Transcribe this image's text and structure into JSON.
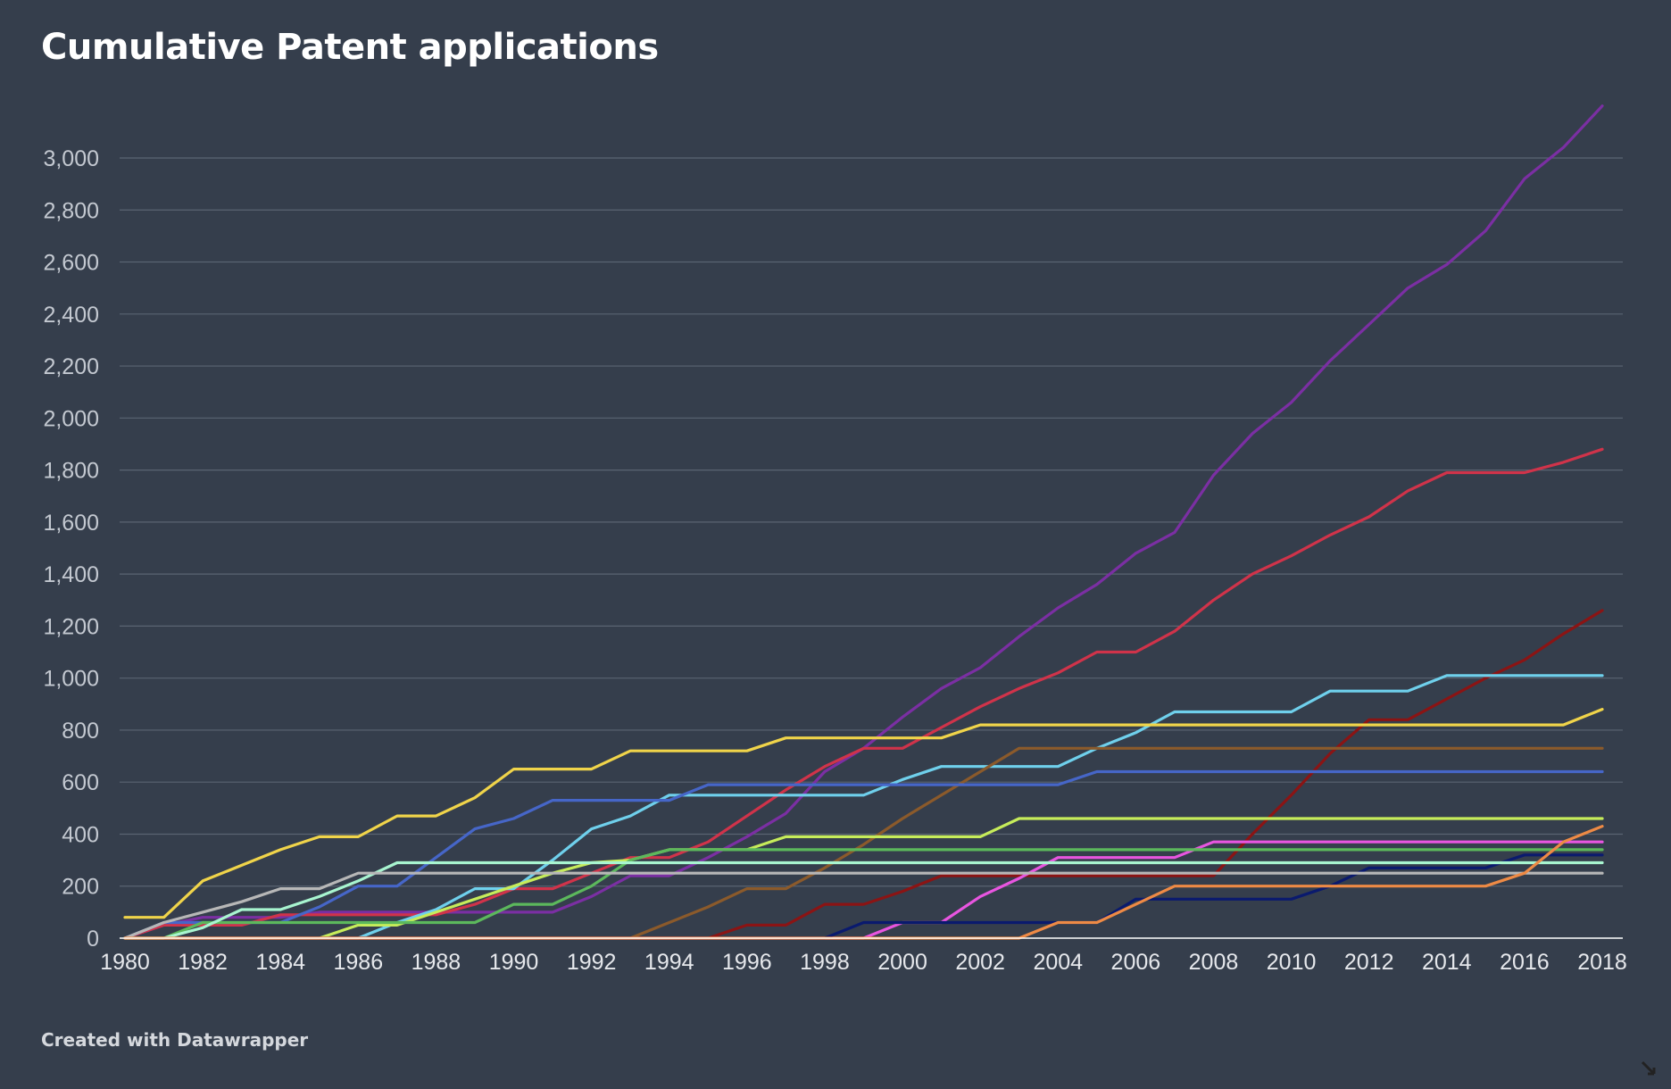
{
  "title": "Cumulative Patent applications",
  "footer": "Created with Datawrapper",
  "chart_data": {
    "type": "line",
    "title": "Cumulative Patent applications",
    "xlabel": "",
    "ylabel": "",
    "x": [
      1980,
      1981,
      1982,
      1983,
      1984,
      1985,
      1986,
      1987,
      1988,
      1989,
      1990,
      1991,
      1992,
      1993,
      1994,
      1995,
      1996,
      1997,
      1998,
      1999,
      2000,
      2001,
      2002,
      2003,
      2004,
      2005,
      2006,
      2007,
      2008,
      2009,
      2010,
      2011,
      2012,
      2013,
      2014,
      2015,
      2016,
      2017,
      2018
    ],
    "xlim": [
      1980,
      2018
    ],
    "ylim": [
      0,
      3200
    ],
    "yticks": [
      0,
      200,
      400,
      600,
      800,
      1000,
      1200,
      1400,
      1600,
      1800,
      2000,
      2200,
      2400,
      2600,
      2800,
      3000
    ],
    "ytick_labels": [
      "0",
      "200",
      "400",
      "600",
      "800",
      "1,000",
      "1,200",
      "1,400",
      "1,600",
      "1,800",
      "2,000",
      "2,200",
      "2,400",
      "2,600",
      "2,800",
      "3,000"
    ],
    "xticks": [
      1980,
      1982,
      1984,
      1986,
      1988,
      1990,
      1992,
      1994,
      1996,
      1998,
      2000,
      2002,
      2004,
      2006,
      2008,
      2010,
      2012,
      2014,
      2016,
      2018
    ],
    "xtick_labels": [
      "1980",
      "1982",
      "1984",
      "1986",
      "1988",
      "1990",
      "1992",
      "1994",
      "1996",
      "1998",
      "2000",
      "2002",
      "2004",
      "2006",
      "2008",
      "2010",
      "2012",
      "2014",
      "2016",
      "2018"
    ],
    "grid": true,
    "legend": "none",
    "series": [
      {
        "color": "#7b2fa3",
        "values": [
          0,
          50,
          80,
          80,
          80,
          100,
          100,
          100,
          100,
          100,
          100,
          100,
          160,
          240,
          240,
          310,
          390,
          480,
          640,
          730,
          850,
          960,
          1040,
          1160,
          1270,
          1360,
          1480,
          1560,
          1780,
          1940,
          2060,
          2220,
          2360,
          2500,
          2590,
          2720,
          2920,
          3040,
          3200
        ]
      },
      {
        "color": "#d0334a",
        "values": [
          0,
          50,
          50,
          50,
          90,
          90,
          90,
          90,
          90,
          130,
          190,
          190,
          250,
          310,
          310,
          370,
          470,
          570,
          660,
          730,
          730,
          810,
          890,
          960,
          1020,
          1100,
          1100,
          1180,
          1300,
          1400,
          1470,
          1550,
          1620,
          1720,
          1790,
          1790,
          1790,
          1830,
          1880
        ]
      },
      {
        "color": "#8b1414",
        "values": [
          0,
          0,
          0,
          0,
          0,
          0,
          0,
          0,
          0,
          0,
          0,
          0,
          0,
          0,
          0,
          0,
          50,
          50,
          130,
          130,
          180,
          240,
          240,
          240,
          240,
          240,
          240,
          240,
          240,
          400,
          550,
          710,
          840,
          840,
          920,
          1000,
          1070,
          1170,
          1260
        ]
      },
      {
        "color": "#6fd0ec",
        "values": [
          0,
          0,
          0,
          0,
          0,
          0,
          0,
          60,
          110,
          190,
          190,
          300,
          420,
          470,
          550,
          550,
          550,
          550,
          550,
          550,
          610,
          660,
          660,
          660,
          660,
          730,
          790,
          870,
          870,
          870,
          870,
          950,
          950,
          950,
          1010,
          1010,
          1010,
          1010,
          1010
        ]
      },
      {
        "color": "#f0d44a",
        "values": [
          80,
          80,
          220,
          280,
          340,
          390,
          390,
          470,
          470,
          540,
          650,
          650,
          650,
          720,
          720,
          720,
          720,
          770,
          770,
          770,
          770,
          770,
          820,
          820,
          820,
          820,
          820,
          820,
          820,
          820,
          820,
          820,
          820,
          820,
          820,
          820,
          820,
          820,
          880
        ]
      },
      {
        "color": "#8b5a2b",
        "values": [
          0,
          0,
          0,
          0,
          0,
          0,
          0,
          0,
          0,
          0,
          0,
          0,
          0,
          0,
          60,
          120,
          190,
          190,
          270,
          360,
          460,
          550,
          640,
          730,
          730,
          730,
          730,
          730,
          730,
          730,
          730,
          730,
          730,
          730,
          730,
          730,
          730,
          730,
          730
        ]
      },
      {
        "color": "#4666c8",
        "values": [
          0,
          60,
          60,
          60,
          60,
          120,
          200,
          200,
          310,
          420,
          460,
          530,
          530,
          530,
          530,
          590,
          590,
          590,
          590,
          590,
          590,
          590,
          590,
          590,
          590,
          640,
          640,
          640,
          640,
          640,
          640,
          640,
          640,
          640,
          640,
          640,
          640,
          640,
          640
        ]
      },
      {
        "color": "#c6ec5a",
        "values": [
          0,
          0,
          0,
          0,
          0,
          0,
          50,
          50,
          100,
          150,
          200,
          250,
          290,
          300,
          340,
          340,
          340,
          390,
          390,
          390,
          390,
          390,
          390,
          460,
          460,
          460,
          460,
          460,
          460,
          460,
          460,
          460,
          460,
          460,
          460,
          460,
          460,
          460,
          460
        ]
      },
      {
        "color": "#e855e0",
        "values": [
          0,
          0,
          0,
          0,
          0,
          0,
          0,
          0,
          0,
          0,
          0,
          0,
          0,
          0,
          0,
          0,
          0,
          0,
          0,
          0,
          60,
          60,
          160,
          230,
          310,
          310,
          310,
          310,
          370,
          370,
          370,
          370,
          370,
          370,
          370,
          370,
          370,
          370,
          370
        ]
      },
      {
        "color": "#5cb85c",
        "values": [
          0,
          0,
          60,
          60,
          60,
          60,
          60,
          60,
          60,
          60,
          130,
          130,
          200,
          300,
          340,
          340,
          340,
          340,
          340,
          340,
          340,
          340,
          340,
          340,
          340,
          340,
          340,
          340,
          340,
          340,
          340,
          340,
          340,
          340,
          340,
          340,
          340,
          340,
          340
        ]
      },
      {
        "color": "#0a1a6e",
        "values": [
          0,
          0,
          0,
          0,
          0,
          0,
          0,
          0,
          0,
          0,
          0,
          0,
          0,
          0,
          0,
          0,
          0,
          0,
          0,
          60,
          60,
          60,
          60,
          60,
          60,
          60,
          150,
          150,
          150,
          150,
          150,
          200,
          270,
          270,
          270,
          270,
          320,
          320,
          320
        ]
      },
      {
        "color": "#a8f5d0",
        "values": [
          0,
          0,
          40,
          110,
          110,
          160,
          220,
          290,
          290,
          290,
          290,
          290,
          290,
          290,
          290,
          290,
          290,
          290,
          290,
          290,
          290,
          290,
          290,
          290,
          290,
          290,
          290,
          290,
          290,
          290,
          290,
          290,
          290,
          290,
          290,
          290,
          290,
          290,
          290
        ]
      },
      {
        "color": "#b7b7b7",
        "values": [
          0,
          60,
          100,
          140,
          190,
          190,
          250,
          250,
          250,
          250,
          250,
          250,
          250,
          250,
          250,
          250,
          250,
          250,
          250,
          250,
          250,
          250,
          250,
          250,
          250,
          250,
          250,
          250,
          250,
          250,
          250,
          250,
          250,
          250,
          250,
          250,
          250,
          250,
          250
        ]
      },
      {
        "color": "#ee8a45",
        "values": [
          0,
          0,
          0,
          0,
          0,
          0,
          0,
          0,
          0,
          0,
          0,
          0,
          0,
          0,
          0,
          0,
          0,
          0,
          0,
          0,
          0,
          0,
          0,
          0,
          60,
          60,
          130,
          200,
          200,
          200,
          200,
          200,
          200,
          200,
          200,
          200,
          250,
          370,
          430
        ]
      }
    ]
  }
}
